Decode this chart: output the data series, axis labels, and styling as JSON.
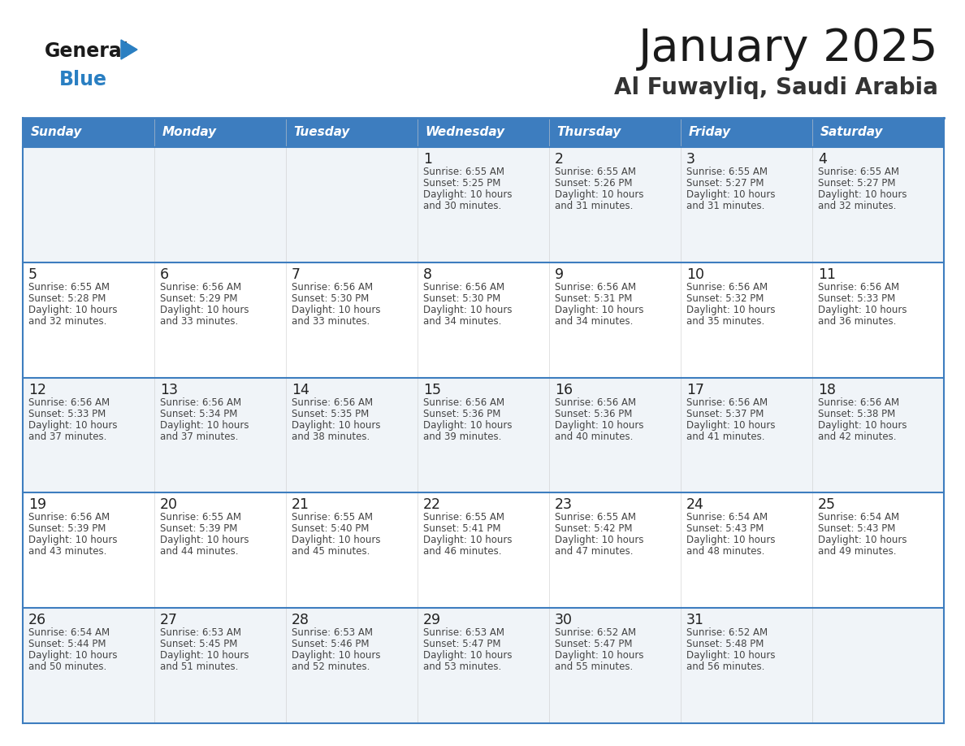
{
  "title": "January 2025",
  "subtitle": "Al Fuwayliq, Saudi Arabia",
  "days_of_week": [
    "Sunday",
    "Monday",
    "Tuesday",
    "Wednesday",
    "Thursday",
    "Friday",
    "Saturday"
  ],
  "header_bg": "#3d7dbf",
  "header_text": "#ffffff",
  "cell_bg_odd": "#f0f4f8",
  "cell_bg_even": "#ffffff",
  "border_color": "#3d7dbf",
  "day_text_color": "#222222",
  "info_text_color": "#444444",
  "title_color": "#1a1a1a",
  "subtitle_color": "#333333",
  "calendar_data": [
    [
      {
        "day": "",
        "sunrise": "",
        "sunset": "",
        "daylight": ""
      },
      {
        "day": "",
        "sunrise": "",
        "sunset": "",
        "daylight": ""
      },
      {
        "day": "",
        "sunrise": "",
        "sunset": "",
        "daylight": ""
      },
      {
        "day": "1",
        "sunrise": "6:55 AM",
        "sunset": "5:25 PM",
        "daylight": "10 hours and 30 minutes."
      },
      {
        "day": "2",
        "sunrise": "6:55 AM",
        "sunset": "5:26 PM",
        "daylight": "10 hours and 31 minutes."
      },
      {
        "day": "3",
        "sunrise": "6:55 AM",
        "sunset": "5:27 PM",
        "daylight": "10 hours and 31 minutes."
      },
      {
        "day": "4",
        "sunrise": "6:55 AM",
        "sunset": "5:27 PM",
        "daylight": "10 hours and 32 minutes."
      }
    ],
    [
      {
        "day": "5",
        "sunrise": "6:55 AM",
        "sunset": "5:28 PM",
        "daylight": "10 hours and 32 minutes."
      },
      {
        "day": "6",
        "sunrise": "6:56 AM",
        "sunset": "5:29 PM",
        "daylight": "10 hours and 33 minutes."
      },
      {
        "day": "7",
        "sunrise": "6:56 AM",
        "sunset": "5:30 PM",
        "daylight": "10 hours and 33 minutes."
      },
      {
        "day": "8",
        "sunrise": "6:56 AM",
        "sunset": "5:30 PM",
        "daylight": "10 hours and 34 minutes."
      },
      {
        "day": "9",
        "sunrise": "6:56 AM",
        "sunset": "5:31 PM",
        "daylight": "10 hours and 34 minutes."
      },
      {
        "day": "10",
        "sunrise": "6:56 AM",
        "sunset": "5:32 PM",
        "daylight": "10 hours and 35 minutes."
      },
      {
        "day": "11",
        "sunrise": "6:56 AM",
        "sunset": "5:33 PM",
        "daylight": "10 hours and 36 minutes."
      }
    ],
    [
      {
        "day": "12",
        "sunrise": "6:56 AM",
        "sunset": "5:33 PM",
        "daylight": "10 hours and 37 minutes."
      },
      {
        "day": "13",
        "sunrise": "6:56 AM",
        "sunset": "5:34 PM",
        "daylight": "10 hours and 37 minutes."
      },
      {
        "day": "14",
        "sunrise": "6:56 AM",
        "sunset": "5:35 PM",
        "daylight": "10 hours and 38 minutes."
      },
      {
        "day": "15",
        "sunrise": "6:56 AM",
        "sunset": "5:36 PM",
        "daylight": "10 hours and 39 minutes."
      },
      {
        "day": "16",
        "sunrise": "6:56 AM",
        "sunset": "5:36 PM",
        "daylight": "10 hours and 40 minutes."
      },
      {
        "day": "17",
        "sunrise": "6:56 AM",
        "sunset": "5:37 PM",
        "daylight": "10 hours and 41 minutes."
      },
      {
        "day": "18",
        "sunrise": "6:56 AM",
        "sunset": "5:38 PM",
        "daylight": "10 hours and 42 minutes."
      }
    ],
    [
      {
        "day": "19",
        "sunrise": "6:56 AM",
        "sunset": "5:39 PM",
        "daylight": "10 hours and 43 minutes."
      },
      {
        "day": "20",
        "sunrise": "6:55 AM",
        "sunset": "5:39 PM",
        "daylight": "10 hours and 44 minutes."
      },
      {
        "day": "21",
        "sunrise": "6:55 AM",
        "sunset": "5:40 PM",
        "daylight": "10 hours and 45 minutes."
      },
      {
        "day": "22",
        "sunrise": "6:55 AM",
        "sunset": "5:41 PM",
        "daylight": "10 hours and 46 minutes."
      },
      {
        "day": "23",
        "sunrise": "6:55 AM",
        "sunset": "5:42 PM",
        "daylight": "10 hours and 47 minutes."
      },
      {
        "day": "24",
        "sunrise": "6:54 AM",
        "sunset": "5:43 PM",
        "daylight": "10 hours and 48 minutes."
      },
      {
        "day": "25",
        "sunrise": "6:54 AM",
        "sunset": "5:43 PM",
        "daylight": "10 hours and 49 minutes."
      }
    ],
    [
      {
        "day": "26",
        "sunrise": "6:54 AM",
        "sunset": "5:44 PM",
        "daylight": "10 hours and 50 minutes."
      },
      {
        "day": "27",
        "sunrise": "6:53 AM",
        "sunset": "5:45 PM",
        "daylight": "10 hours and 51 minutes."
      },
      {
        "day": "28",
        "sunrise": "6:53 AM",
        "sunset": "5:46 PM",
        "daylight": "10 hours and 52 minutes."
      },
      {
        "day": "29",
        "sunrise": "6:53 AM",
        "sunset": "5:47 PM",
        "daylight": "10 hours and 53 minutes."
      },
      {
        "day": "30",
        "sunrise": "6:52 AM",
        "sunset": "5:47 PM",
        "daylight": "10 hours and 55 minutes."
      },
      {
        "day": "31",
        "sunrise": "6:52 AM",
        "sunset": "5:48 PM",
        "daylight": "10 hours and 56 minutes."
      },
      {
        "day": "",
        "sunrise": "",
        "sunset": "",
        "daylight": ""
      }
    ]
  ],
  "logo_general_color": "#1a1a1a",
  "logo_blue_color": "#2a7fc2",
  "fig_width": 11.88,
  "fig_height": 9.18,
  "dpi": 100
}
